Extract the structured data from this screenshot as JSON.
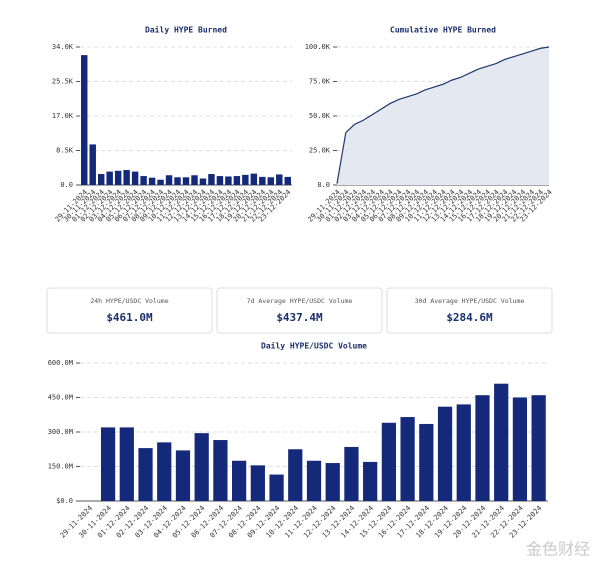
{
  "chart_data": [
    {
      "type": "bar",
      "title": "Daily HYPE Burned",
      "color": "#14297a",
      "grid": true,
      "categories": [
        "29-11-2024",
        "30-11-2024",
        "01-12-2024",
        "02-12-2024",
        "03-12-2024",
        "04-12-2024",
        "05-12-2024",
        "06-12-2024",
        "07-12-2024",
        "08-12-2024",
        "09-12-2024",
        "10-12-2024",
        "11-12-2024",
        "12-12-2024",
        "13-12-2024",
        "14-12-2024",
        "15-12-2024",
        "16-12-2024",
        "17-12-2024",
        "18-12-2024",
        "19-12-2024",
        "20-12-2024",
        "21-12-2024",
        "22-12-2024",
        "23-12-2024"
      ],
      "values": [
        32000,
        10000,
        2700,
        3300,
        3500,
        3700,
        3300,
        2200,
        1800,
        1300,
        2400,
        1900,
        1900,
        2400,
        1600,
        2700,
        2200,
        2100,
        2200,
        2500,
        2800,
        2000,
        1900,
        2600,
        2000
      ],
      "ylim": [
        0,
        34000
      ],
      "yticks": [
        {
          "value": 0,
          "label": "0.0"
        },
        {
          "value": 8500,
          "label": "8.5K"
        },
        {
          "value": 17000,
          "label": "17.0K"
        },
        {
          "value": 25500,
          "label": "25.5K"
        },
        {
          "value": 34000,
          "label": "34.0K"
        }
      ]
    },
    {
      "type": "area",
      "title": "Cumulative HYPE Burned",
      "color": "#1d3a6e",
      "fill": "#e3e8f1",
      "grid": true,
      "categories": [
        "29-11-2024",
        "30-11-2024",
        "01-12-2024",
        "02-12-2024",
        "03-12-2024",
        "04-12-2024",
        "05-12-2024",
        "06-12-2024",
        "07-12-2024",
        "08-12-2024",
        "09-12-2024",
        "10-12-2024",
        "11-12-2024",
        "12-12-2024",
        "13-12-2024",
        "14-12-2024",
        "15-12-2024",
        "16-12-2024",
        "17-12-2024",
        "18-12-2024",
        "19-12-2024",
        "20-12-2024",
        "21-12-2024",
        "22-12-2024",
        "23-12-2024"
      ],
      "values": [
        1000,
        38000,
        44000,
        47000,
        51000,
        55000,
        59000,
        62000,
        64000,
        66000,
        69000,
        71000,
        73000,
        76000,
        78000,
        81000,
        84000,
        86000,
        88000,
        91000,
        93000,
        95000,
        97000,
        99000,
        100000
      ],
      "ylim": [
        0,
        100000
      ],
      "yticks": [
        {
          "value": 0,
          "label": "0.0"
        },
        {
          "value": 25000,
          "label": "25.0K"
        },
        {
          "value": 50000,
          "label": "50.0K"
        },
        {
          "value": 75000,
          "label": "75.0K"
        },
        {
          "value": 100000,
          "label": "100.0K"
        }
      ]
    },
    {
      "type": "bar",
      "title": "Daily HYPE/USDC Volume",
      "color": "#14297a",
      "grid": true,
      "categories": [
        "29-11-2024",
        "30-11-2024",
        "01-12-2024",
        "02-12-2024",
        "03-12-2024",
        "04-12-2024",
        "05-12-2024",
        "06-12-2024",
        "07-12-2024",
        "08-12-2024",
        "09-12-2024",
        "10-12-2024",
        "11-12-2024",
        "12-12-2024",
        "13-12-2024",
        "14-12-2024",
        "15-12-2024",
        "16-12-2024",
        "17-12-2024",
        "18-12-2024",
        "19-12-2024",
        "20-12-2024",
        "21-12-2024",
        "22-12-2024",
        "23-12-2024"
      ],
      "values": [
        null,
        320,
        320,
        230,
        255,
        220,
        295,
        265,
        175,
        155,
        115,
        225,
        175,
        165,
        235,
        170,
        340,
        365,
        335,
        410,
        420,
        460,
        510,
        450,
        460
      ],
      "ylim": [
        0,
        600
      ],
      "yticks": [
        {
          "value": 0,
          "label": "$0.0"
        },
        {
          "value": 150,
          "label": "150.0M"
        },
        {
          "value": 300,
          "label": "300.0M"
        },
        {
          "value": 450,
          "label": "450.0M"
        },
        {
          "value": 600,
          "label": "600.0M"
        }
      ]
    }
  ],
  "stats": [
    {
      "label": "24h HYPE/USDC Volume",
      "value": "$461.0M"
    },
    {
      "label": "7d Average HYPE/USDC Volume",
      "value": "$437.4M"
    },
    {
      "label": "30d Average HYPE/USDC Volume",
      "value": "$284.6M"
    }
  ],
  "watermark": "金色财经"
}
